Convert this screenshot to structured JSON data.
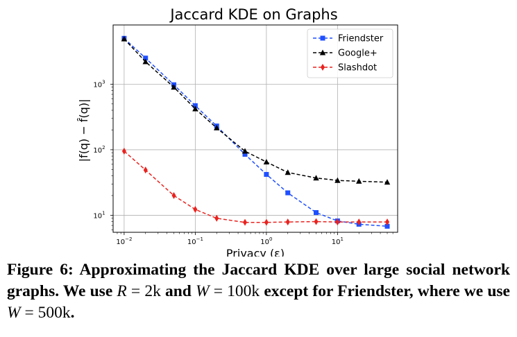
{
  "chart_data": {
    "type": "line",
    "title": "Jaccard KDE on Graphs",
    "xlabel": "Privacy (ε)",
    "ylabel": "|f(q) − f̂(q)|",
    "xscale": "log",
    "yscale": "log",
    "xlim": [
      0.007,
      70
    ],
    "ylim": [
      5.5,
      8000
    ],
    "x_ticks": [
      {
        "value": 0.01,
        "base": "10",
        "exp": "−2"
      },
      {
        "value": 0.1,
        "base": "10",
        "exp": "−1"
      },
      {
        "value": 1,
        "base": "10",
        "exp": "0"
      },
      {
        "value": 10,
        "base": "10",
        "exp": "1"
      }
    ],
    "y_ticks": [
      {
        "value": 10,
        "base": "10",
        "exp": "1"
      },
      {
        "value": 100,
        "base": "10",
        "exp": "2"
      },
      {
        "value": 1000,
        "base": "10",
        "exp": "3"
      }
    ],
    "grid": true,
    "legend_position": "top-right",
    "x": [
      0.01,
      0.02,
      0.05,
      0.1,
      0.2,
      0.5,
      1,
      2,
      5,
      10,
      20,
      50
    ],
    "series": [
      {
        "name": "Friendster",
        "color": "#1f4fff",
        "marker": "square",
        "values": [
          5000,
          2500,
          980,
          470,
          230,
          85,
          42,
          22,
          11,
          8.2,
          7.3,
          6.8
        ]
      },
      {
        "name": "Google+",
        "color": "#000000",
        "marker": "triangle",
        "values": [
          4900,
          2200,
          900,
          420,
          215,
          95,
          65,
          45,
          37,
          34,
          33,
          32
        ]
      },
      {
        "name": "Slashdot",
        "color": "#e8231f",
        "marker": "diamond",
        "values": [
          95,
          49,
          20,
          12.3,
          9,
          7.8,
          7.8,
          7.9,
          8,
          7.9,
          7.9,
          7.9
        ]
      }
    ]
  },
  "caption": {
    "figure_label": "Figure 6:",
    "text_1": " Approximating the Jaccard KDE over large social network graphs. We use ",
    "R_sym": "R",
    "eq_1": " = 2k",
    "text_2": " and ",
    "W_sym": "W",
    "eq_2": " = 100k",
    "text_3": " except for Friendster, where we use ",
    "W_sym_2": "W",
    "eq_3": " = 500k",
    "text_4": "."
  }
}
